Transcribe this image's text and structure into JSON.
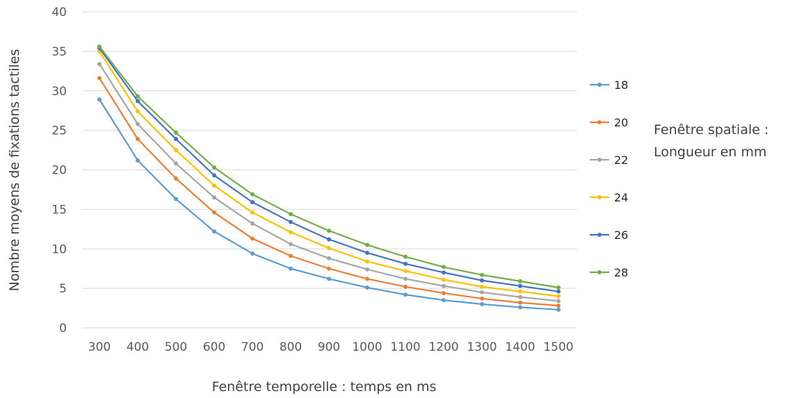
{
  "chart_data": {
    "type": "line",
    "x": [
      300,
      400,
      500,
      600,
      700,
      800,
      900,
      1000,
      1100,
      1200,
      1300,
      1400,
      1500
    ],
    "xlabel": "Fenêtre temporelle : temps en ms",
    "ylabel": "Nombre moyens de fixations tactiles",
    "ylim": [
      0,
      40
    ],
    "yticks": [
      0,
      5,
      10,
      15,
      20,
      25,
      30,
      35,
      40
    ],
    "grid": "horizontal",
    "legend_position": "right",
    "legend_title": [
      "Fenêtre spatiale :",
      "Longueur en mm"
    ],
    "series": [
      {
        "name": "18",
        "color": "#5b9bd5",
        "values": [
          28.9,
          21.2,
          16.3,
          12.2,
          9.4,
          7.5,
          6.2,
          5.1,
          4.2,
          3.5,
          3.0,
          2.6,
          2.3
        ]
      },
      {
        "name": "20",
        "color": "#ed7d31",
        "values": [
          31.6,
          23.9,
          18.9,
          14.6,
          11.3,
          9.1,
          7.5,
          6.2,
          5.2,
          4.4,
          3.7,
          3.2,
          2.8
        ]
      },
      {
        "name": "22",
        "color": "#a5a5a5",
        "values": [
          33.4,
          25.8,
          20.8,
          16.5,
          13.2,
          10.6,
          8.8,
          7.4,
          6.2,
          5.3,
          4.5,
          3.9,
          3.4
        ]
      },
      {
        "name": "24",
        "color": "#ffc000",
        "values": [
          35.0,
          27.4,
          22.5,
          18.0,
          14.6,
          12.1,
          10.1,
          8.4,
          7.2,
          6.1,
          5.2,
          4.6,
          4.0
        ]
      },
      {
        "name": "26",
        "color": "#4472c4",
        "values": [
          35.4,
          28.7,
          23.9,
          19.3,
          15.9,
          13.4,
          11.2,
          9.5,
          8.1,
          7.0,
          6.0,
          5.3,
          4.6
        ]
      },
      {
        "name": "28",
        "color": "#70ad47",
        "values": [
          35.6,
          29.3,
          24.7,
          20.3,
          16.9,
          14.4,
          12.3,
          10.5,
          9.0,
          7.7,
          6.7,
          5.9,
          5.1
        ]
      }
    ]
  }
}
